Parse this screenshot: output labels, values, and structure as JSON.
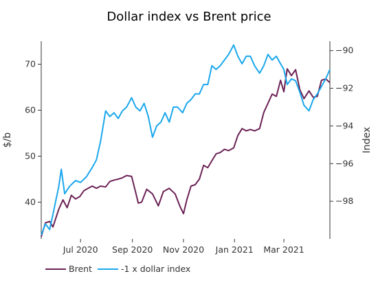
{
  "chart_data": {
    "type": "line",
    "title": "Dollar index vs Brent price",
    "xlabel": "",
    "ylabel_left": "$/b",
    "ylabel_right": "Index",
    "x_range": [
      "2020-05-15",
      "2021-04-25"
    ],
    "x_ticks": [
      {
        "date": "2020-07-01",
        "label": "Jul 2020"
      },
      {
        "date": "2020-09-01",
        "label": "Sep 2020"
      },
      {
        "date": "2020-11-01",
        "label": "Nov 2020"
      },
      {
        "date": "2021-01-01",
        "label": "Jan 2021"
      },
      {
        "date": "2021-03-01",
        "label": "Mar 2021"
      }
    ],
    "y_left": {
      "range": [
        32,
        75
      ],
      "ticks": [
        {
          "v": 40,
          "label": "40"
        },
        {
          "v": 50,
          "label": "50"
        },
        {
          "v": 60,
          "label": "60"
        },
        {
          "v": 70,
          "label": "70"
        }
      ]
    },
    "y_right": {
      "range": [
        -100,
        -89.5
      ],
      "ticks": [
        {
          "v": -98,
          "label": "−98"
        },
        {
          "v": -96,
          "label": "−96"
        },
        {
          "v": -94,
          "label": "−94"
        },
        {
          "v": -92,
          "label": "−92"
        },
        {
          "v": -90,
          "label": "−90"
        }
      ]
    },
    "grid": false,
    "legend_position": "bottom-left",
    "series": [
      {
        "name": "Brent",
        "axis": "left",
        "color": "#6b2155",
        "points": [
          [
            "2020-05-15",
            32.5
          ],
          [
            "2020-05-20",
            35.5
          ],
          [
            "2020-05-25",
            35.8
          ],
          [
            "2020-05-29",
            34.6
          ],
          [
            "2020-06-05",
            38.5
          ],
          [
            "2020-06-10",
            40.5
          ],
          [
            "2020-06-15",
            38.8
          ],
          [
            "2020-06-20",
            41.5
          ],
          [
            "2020-06-25",
            40.7
          ],
          [
            "2020-06-30",
            41.2
          ],
          [
            "2020-07-05",
            42.5
          ],
          [
            "2020-07-10",
            43.0
          ],
          [
            "2020-07-15",
            43.5
          ],
          [
            "2020-07-20",
            43.0
          ],
          [
            "2020-07-25",
            43.5
          ],
          [
            "2020-07-31",
            43.3
          ],
          [
            "2020-08-05",
            44.5
          ],
          [
            "2020-08-10",
            44.8
          ],
          [
            "2020-08-15",
            45.0
          ],
          [
            "2020-08-20",
            45.3
          ],
          [
            "2020-08-25",
            45.8
          ],
          [
            "2020-08-31",
            45.6
          ],
          [
            "2020-09-05",
            42.0
          ],
          [
            "2020-09-08",
            39.8
          ],
          [
            "2020-09-12",
            40.0
          ],
          [
            "2020-09-18",
            42.8
          ],
          [
            "2020-09-25",
            41.8
          ],
          [
            "2020-10-02",
            39.2
          ],
          [
            "2020-10-08",
            42.3
          ],
          [
            "2020-10-15",
            43.0
          ],
          [
            "2020-10-22",
            41.8
          ],
          [
            "2020-10-28",
            39.0
          ],
          [
            "2020-11-01",
            37.5
          ],
          [
            "2020-11-05",
            40.5
          ],
          [
            "2020-11-10",
            43.5
          ],
          [
            "2020-11-15",
            43.8
          ],
          [
            "2020-11-20",
            45.0
          ],
          [
            "2020-11-25",
            48.0
          ],
          [
            "2020-11-30",
            47.5
          ],
          [
            "2020-12-05",
            49.0
          ],
          [
            "2020-12-10",
            50.5
          ],
          [
            "2020-12-15",
            50.8
          ],
          [
            "2020-12-20",
            51.5
          ],
          [
            "2020-12-25",
            51.2
          ],
          [
            "2020-12-31",
            51.8
          ],
          [
            "2021-01-05",
            54.5
          ],
          [
            "2021-01-10",
            56.0
          ],
          [
            "2021-01-15",
            55.5
          ],
          [
            "2021-01-20",
            55.8
          ],
          [
            "2021-01-25",
            55.5
          ],
          [
            "2021-01-31",
            56.0
          ],
          [
            "2021-02-05",
            59.5
          ],
          [
            "2021-02-10",
            61.5
          ],
          [
            "2021-02-15",
            63.5
          ],
          [
            "2021-02-20",
            63.0
          ],
          [
            "2021-02-25",
            66.5
          ],
          [
            "2021-03-01",
            64.0
          ],
          [
            "2021-03-05",
            69.0
          ],
          [
            "2021-03-10",
            67.5
          ],
          [
            "2021-03-15",
            68.8
          ],
          [
            "2021-03-20",
            64.5
          ],
          [
            "2021-03-25",
            62.5
          ],
          [
            "2021-03-31",
            64.2
          ],
          [
            "2021-04-05",
            62.8
          ],
          [
            "2021-04-10",
            63.0
          ],
          [
            "2021-04-15",
            66.5
          ],
          [
            "2021-04-20",
            66.8
          ],
          [
            "2021-04-25",
            66.0
          ]
        ]
      },
      {
        "name": "-1 x dollar index",
        "axis": "right",
        "color": "#1aa7ec",
        "points": [
          [
            "2020-05-15",
            -99.8
          ],
          [
            "2020-05-20",
            -99.2
          ],
          [
            "2020-05-25",
            -99.5
          ],
          [
            "2020-05-29",
            -98.7
          ],
          [
            "2020-06-05",
            -97.2
          ],
          [
            "2020-06-08",
            -96.3
          ],
          [
            "2020-06-12",
            -97.6
          ],
          [
            "2020-06-18",
            -97.2
          ],
          [
            "2020-06-25",
            -96.9
          ],
          [
            "2020-07-01",
            -97.0
          ],
          [
            "2020-07-08",
            -96.7
          ],
          [
            "2020-07-15",
            -96.2
          ],
          [
            "2020-07-20",
            -95.8
          ],
          [
            "2020-07-25",
            -94.8
          ],
          [
            "2020-07-31",
            -93.2
          ],
          [
            "2020-08-05",
            -93.5
          ],
          [
            "2020-08-10",
            -93.3
          ],
          [
            "2020-08-15",
            -93.6
          ],
          [
            "2020-08-20",
            -93.2
          ],
          [
            "2020-08-25",
            -93.0
          ],
          [
            "2020-08-31",
            -92.5
          ],
          [
            "2020-09-05",
            -93.0
          ],
          [
            "2020-09-10",
            -93.2
          ],
          [
            "2020-09-15",
            -92.8
          ],
          [
            "2020-09-20",
            -93.5
          ],
          [
            "2020-09-25",
            -94.6
          ],
          [
            "2020-09-30",
            -94.0
          ],
          [
            "2020-10-05",
            -93.8
          ],
          [
            "2020-10-10",
            -93.3
          ],
          [
            "2020-10-15",
            -93.8
          ],
          [
            "2020-10-20",
            -93.0
          ],
          [
            "2020-10-25",
            -93.0
          ],
          [
            "2020-10-31",
            -93.3
          ],
          [
            "2020-11-05",
            -92.8
          ],
          [
            "2020-11-10",
            -92.6
          ],
          [
            "2020-11-15",
            -92.3
          ],
          [
            "2020-11-20",
            -92.3
          ],
          [
            "2020-11-25",
            -91.8
          ],
          [
            "2020-11-30",
            -91.8
          ],
          [
            "2020-12-05",
            -90.8
          ],
          [
            "2020-12-10",
            -91.0
          ],
          [
            "2020-12-15",
            -90.8
          ],
          [
            "2020-12-20",
            -90.5
          ],
          [
            "2020-12-25",
            -90.2
          ],
          [
            "2020-12-31",
            -89.7
          ],
          [
            "2021-01-05",
            -90.3
          ],
          [
            "2021-01-10",
            -90.7
          ],
          [
            "2021-01-15",
            -90.3
          ],
          [
            "2021-01-20",
            -90.3
          ],
          [
            "2021-01-25",
            -90.8
          ],
          [
            "2021-01-31",
            -91.2
          ],
          [
            "2021-02-05",
            -90.8
          ],
          [
            "2021-02-10",
            -90.2
          ],
          [
            "2021-02-15",
            -90.5
          ],
          [
            "2021-02-20",
            -90.3
          ],
          [
            "2021-02-25",
            -90.7
          ],
          [
            "2021-03-01",
            -91.0
          ],
          [
            "2021-03-05",
            -91.8
          ],
          [
            "2021-03-10",
            -91.5
          ],
          [
            "2021-03-15",
            -91.6
          ],
          [
            "2021-03-20",
            -92.2
          ],
          [
            "2021-03-25",
            -92.9
          ],
          [
            "2021-03-31",
            -93.2
          ],
          [
            "2021-04-05",
            -92.6
          ],
          [
            "2021-04-10",
            -92.3
          ],
          [
            "2021-04-15",
            -91.9
          ],
          [
            "2021-04-20",
            -91.5
          ],
          [
            "2021-04-25",
            -91.0
          ]
        ]
      }
    ]
  }
}
